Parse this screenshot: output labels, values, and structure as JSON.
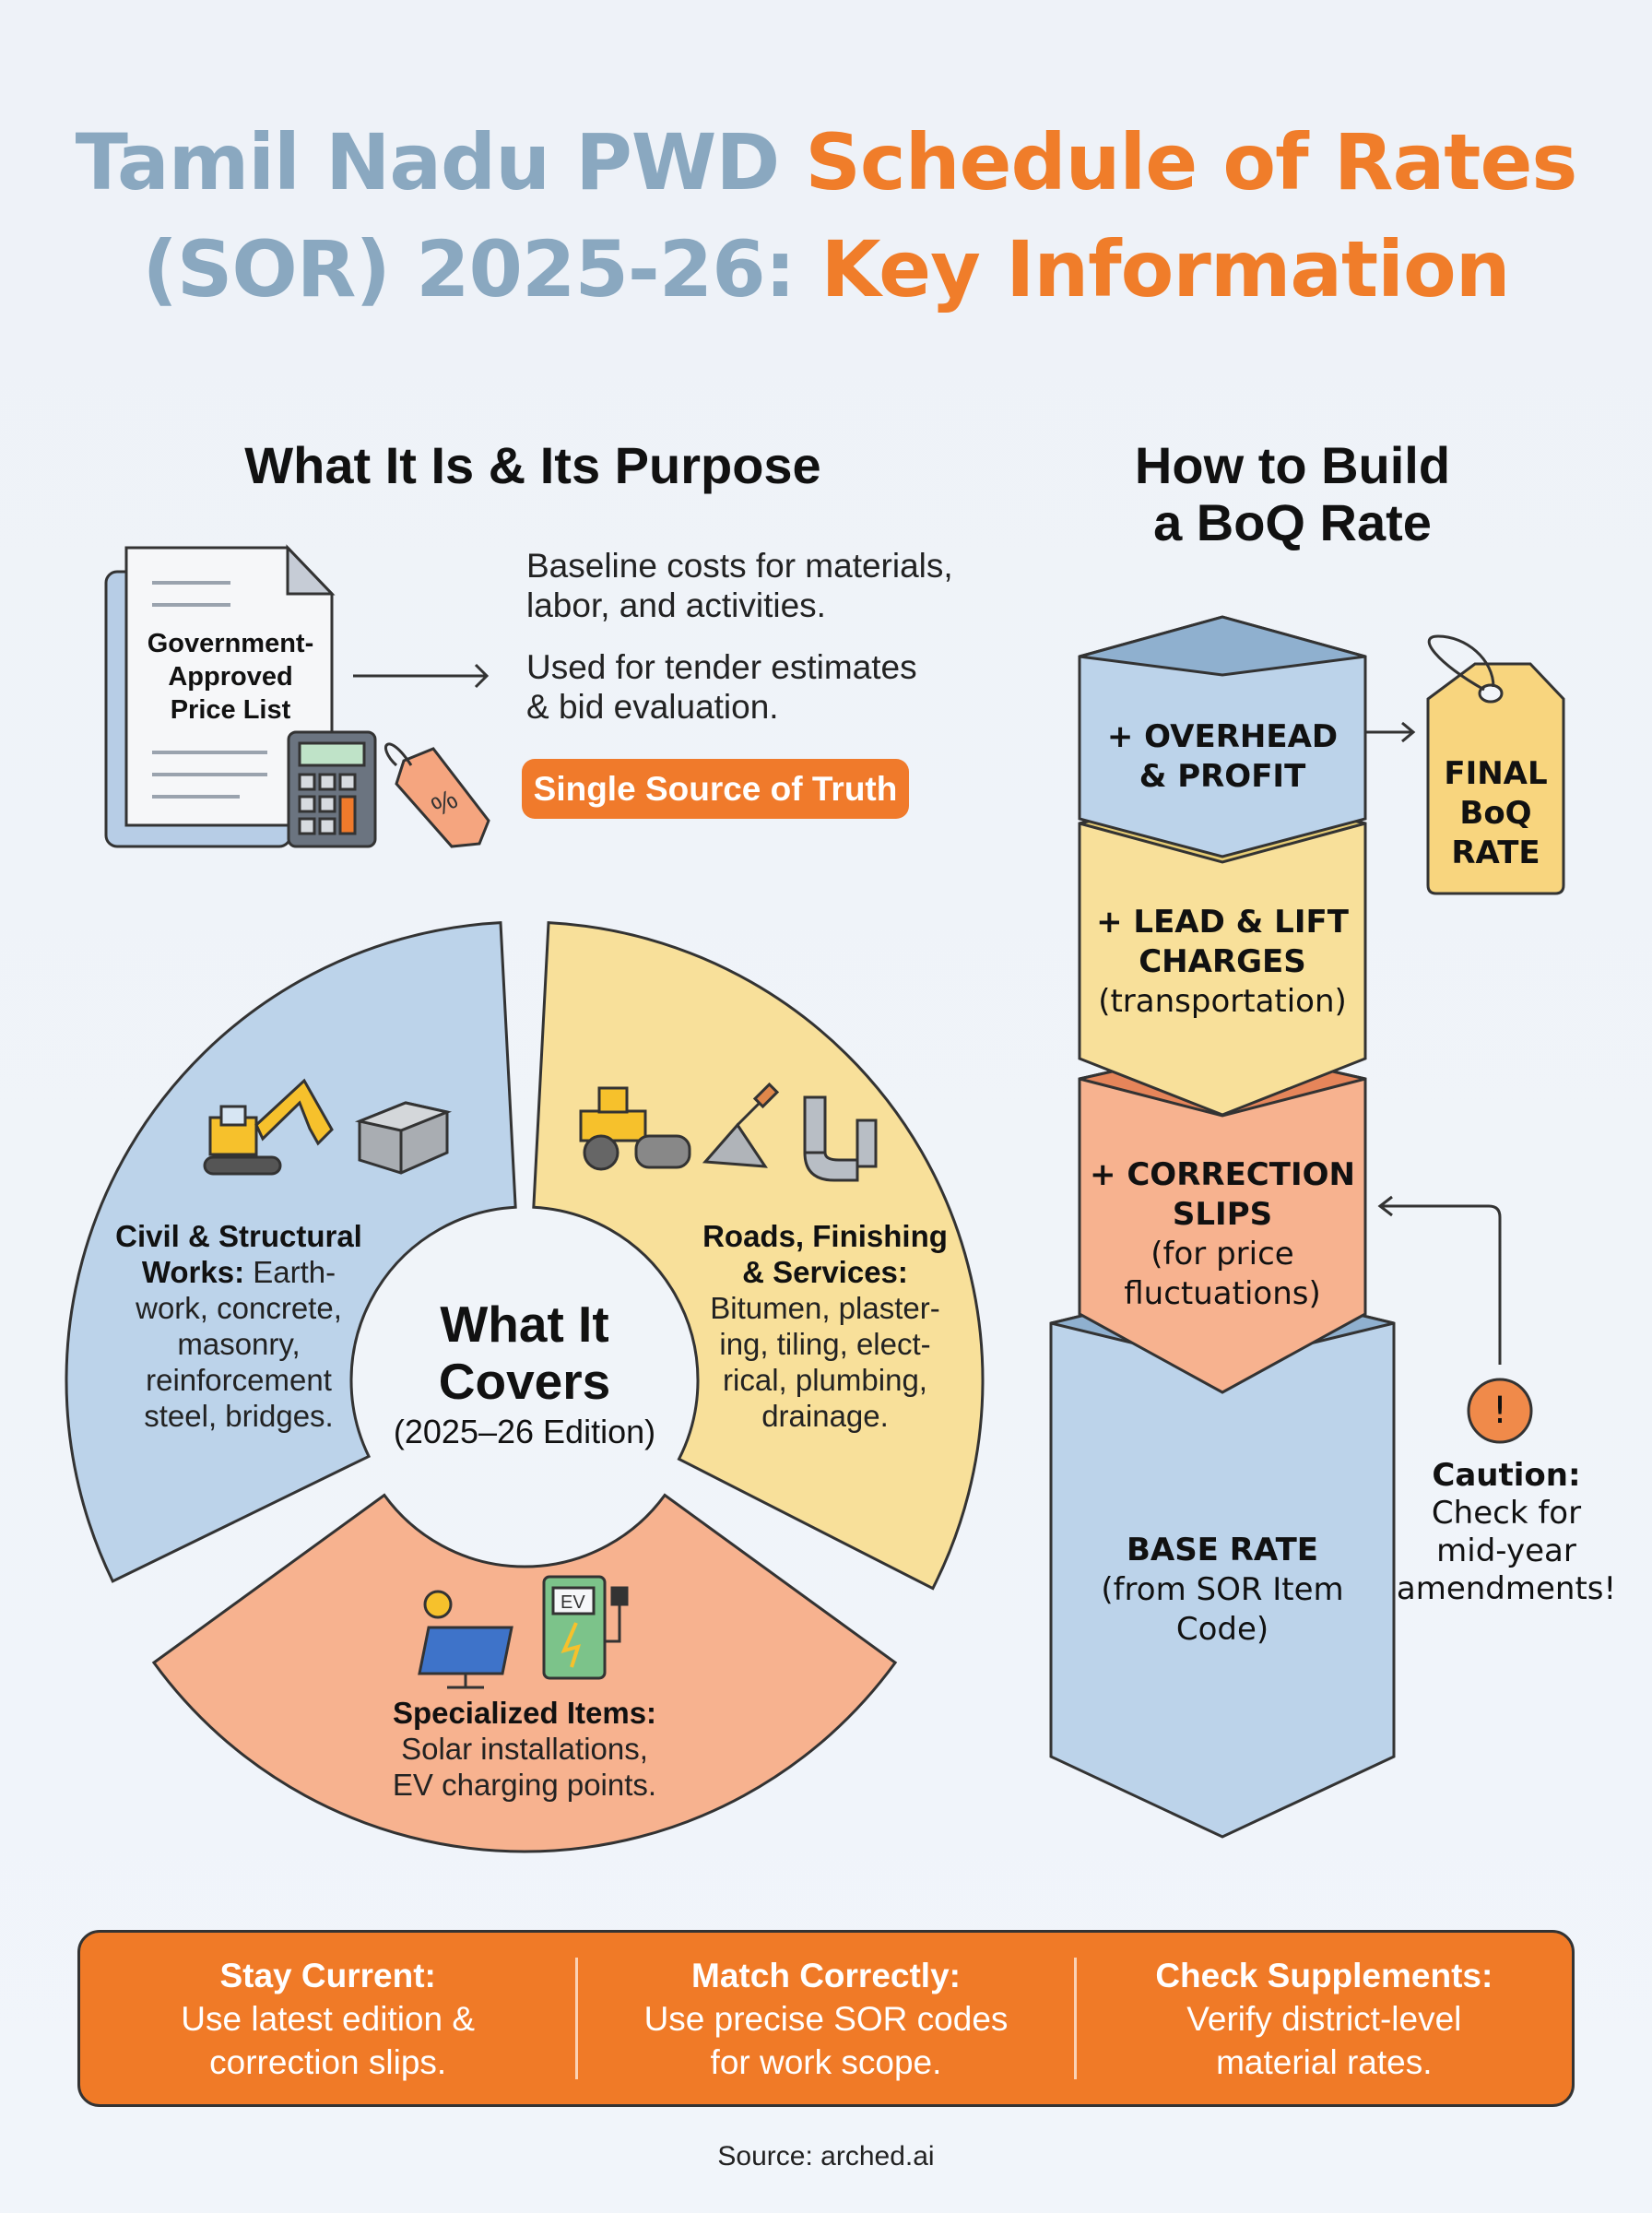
{
  "title": {
    "part1": "Tamil Nadu PWD ",
    "part2": "Schedule of Rates",
    "part3": "(SOR) 2025-26: ",
    "part4": "Key Information"
  },
  "purpose": {
    "heading": "What It Is & Its Purpose",
    "doc_label": [
      "Government-",
      "Approved",
      "Price List"
    ],
    "points": [
      "Baseline costs for materials,",
      "labor, and activities.",
      "Used for tender estimates",
      "& bid evaluation."
    ],
    "pill": "Single Source of Truth"
  },
  "covers": {
    "center_title": [
      "What It",
      "Covers"
    ],
    "center_sub": "(2025–26 Edition)",
    "civil": {
      "bold": [
        "Civil & Structural",
        "Works:"
      ],
      "text": [
        " Earth-",
        "work, concrete,",
        "masonry,",
        "reinforcement",
        "steel, bridges."
      ]
    },
    "roads": {
      "bold": [
        "Roads, Finishing",
        "& Services:"
      ],
      "text": [
        "Bitumen, plaster-",
        "ing, tiling, elect-",
        "rical, plumbing,",
        "drainage."
      ]
    },
    "special": {
      "bold": "Specialized Items:",
      "text": [
        "Solar installations,",
        "EV charging points."
      ]
    },
    "ev_label": "EV"
  },
  "boq": {
    "heading": [
      "How to Build",
      "a BoQ Rate"
    ],
    "overhead": [
      "+ OVERHEAD",
      "& PROFIT"
    ],
    "lead": [
      "+ LEAD & LIFT",
      "CHARGES",
      "(transportation)"
    ],
    "correction": [
      "+ CORRECTION",
      "SLIPS",
      "(for price",
      "fluctuations)"
    ],
    "base": [
      "BASE RATE",
      "(from SOR Item",
      "Code)"
    ],
    "final": [
      "FINAL",
      "BoQ",
      "RATE"
    ],
    "caution_icon": "!",
    "caution": [
      "Caution:",
      "Check for",
      "mid-year",
      "amendments!"
    ]
  },
  "tips": [
    {
      "title": "Stay Current:",
      "lines": [
        "Use latest edition &",
        "correction slips."
      ]
    },
    {
      "title": "Match Correctly:",
      "lines": [
        "Use precise SOR codes",
        "for work scope."
      ]
    },
    {
      "title": "Check Supplements:",
      "lines": [
        "Verify district-level",
        "material rates."
      ]
    }
  ],
  "source": "Source: arched.ai",
  "colors": {
    "orange": "#f07a2b",
    "title_blue": "#8aa8c0",
    "blue": "#bcd3ea",
    "yellow": "#f8e09a",
    "salmon": "#f7b28f"
  }
}
